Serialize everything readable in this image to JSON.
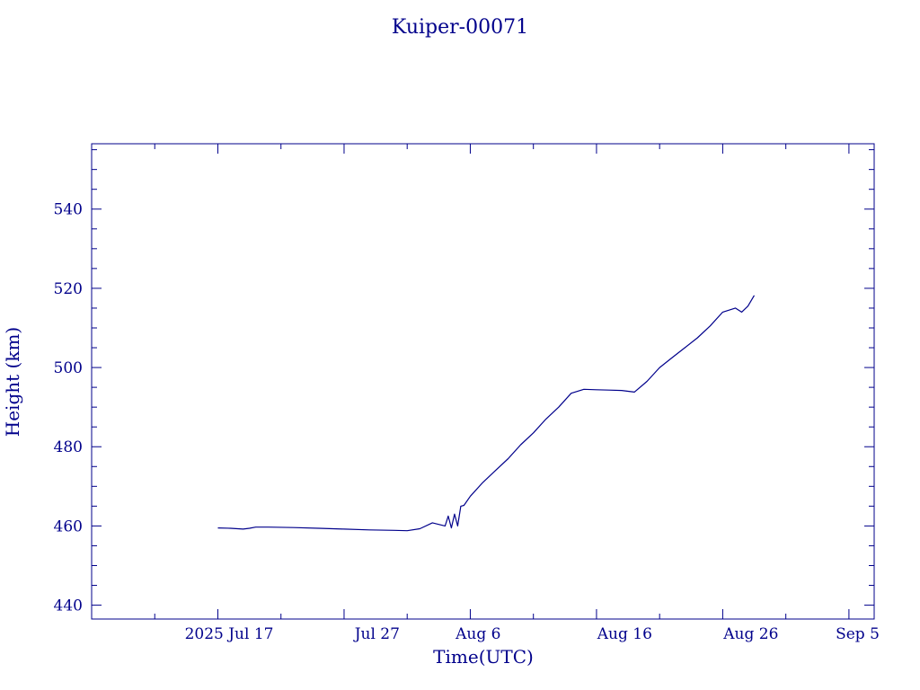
{
  "colors": {
    "ink": "#00008b",
    "background": "#ffffff"
  },
  "chart_data": {
    "type": "line",
    "title": "Kuiper-00071",
    "xlabel": "Time(UTC)",
    "ylabel": "Height (km)",
    "xlim": [
      "2025-07-07",
      "2025-09-07"
    ],
    "ylim": [
      436.5,
      556.5
    ],
    "grid": false,
    "x_ticks": [
      {
        "date": "2025-07-17",
        "label": "2025 Jul 17"
      },
      {
        "date": "2025-07-27",
        "label": "Jul 27"
      },
      {
        "date": "2025-08-06",
        "label": "Aug  6"
      },
      {
        "date": "2025-08-16",
        "label": "Aug 16"
      },
      {
        "date": "2025-08-26",
        "label": "Aug 26"
      },
      {
        "date": "2025-09-05",
        "label": "Sep  5"
      }
    ],
    "y_ticks": [
      440,
      460,
      480,
      500,
      520,
      540
    ],
    "series": [
      {
        "x": [
          "2025-07-17",
          "2025-07-18",
          "2025-07-19",
          "2025-07-19 12:00",
          "2025-07-20",
          "2025-07-21",
          "2025-07-23",
          "2025-07-25",
          "2025-07-27",
          "2025-07-29",
          "2025-07-31",
          "2025-08-01",
          "2025-08-02",
          "2025-08-03",
          "2025-08-04",
          "2025-08-04 06:00",
          "2025-08-04 12:00",
          "2025-08-04 18:00",
          "2025-08-05",
          "2025-08-05 06:00",
          "2025-08-05 12:00",
          "2025-08-06",
          "2025-08-07",
          "2025-08-08",
          "2025-08-09",
          "2025-08-10",
          "2025-08-11",
          "2025-08-12",
          "2025-08-13",
          "2025-08-14",
          "2025-08-15",
          "2025-08-16",
          "2025-08-17",
          "2025-08-18",
          "2025-08-19",
          "2025-08-20",
          "2025-08-21",
          "2025-08-22",
          "2025-08-23",
          "2025-08-24",
          "2025-08-25",
          "2025-08-26",
          "2025-08-27",
          "2025-08-27 12:00",
          "2025-08-28",
          "2025-08-28 12:00"
        ],
        "y": [
          459.5,
          459.4,
          459.2,
          459.4,
          459.7,
          459.7,
          459.6,
          459.4,
          459.2,
          459.0,
          458.9,
          458.8,
          459.3,
          460.8,
          460.0,
          462.5,
          459.5,
          463.0,
          460.0,
          465.0,
          465.2,
          467.5,
          471.0,
          474.0,
          477.0,
          480.5,
          483.5,
          487.0,
          490.0,
          493.5,
          494.5,
          494.4,
          494.3,
          494.2,
          493.8,
          496.5,
          500.0,
          502.5,
          505.0,
          507.5,
          510.5,
          514.0,
          515.0,
          514.0,
          515.5,
          518.2
        ]
      }
    ]
  }
}
